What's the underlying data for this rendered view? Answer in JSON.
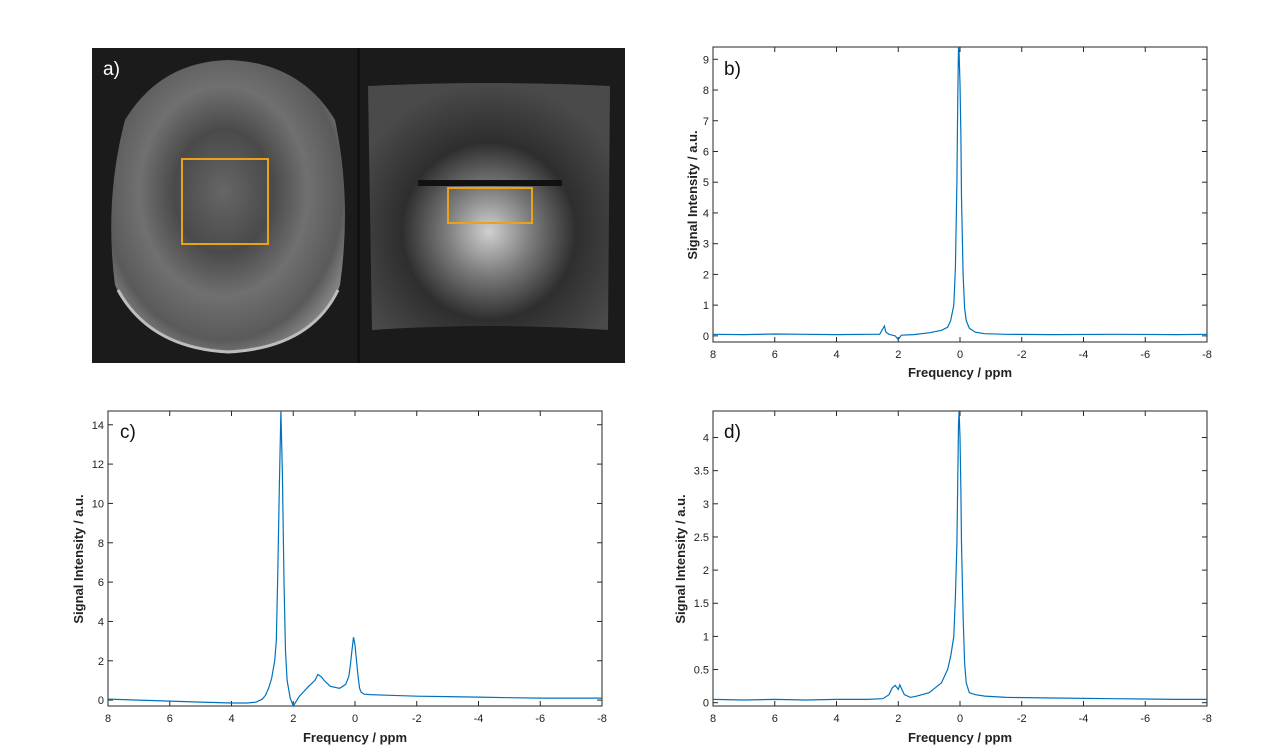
{
  "figure": {
    "panel_a_label": "a)"
  },
  "chart_data": [
    {
      "id": "b",
      "type": "line",
      "panel_label": "b)",
      "xlabel": "Frequency / ppm",
      "ylabel": "Signal Intensity / a.u.",
      "xlim": [
        8,
        -8
      ],
      "ylim": [
        -0.2,
        9.4
      ],
      "xticks": [
        8,
        6,
        4,
        2,
        0,
        -2,
        -4,
        -6,
        -8
      ],
      "xtick_labels": [
        "8",
        "6",
        "4",
        "2",
        "0",
        "-2",
        "-4",
        "-6",
        "-8"
      ],
      "yticks": [
        0,
        1,
        2,
        3,
        4,
        5,
        6,
        7,
        8,
        9
      ],
      "ytick_labels": [
        "0",
        "1",
        "2",
        "3",
        "4",
        "5",
        "6",
        "7",
        "8",
        "9"
      ],
      "line_color": "#0072BD",
      "x": [
        8,
        7,
        6,
        5,
        4,
        3,
        2.6,
        2.45,
        2.4,
        2.3,
        2.1,
        2.0,
        1.9,
        1.5,
        1.0,
        0.6,
        0.4,
        0.3,
        0.2,
        0.15,
        0.1,
        0.07,
        0.05,
        0.03,
        0.0,
        -0.03,
        -0.05,
        -0.1,
        -0.15,
        -0.2,
        -0.3,
        -0.5,
        -0.8,
        -1.5,
        -3,
        -5,
        -7,
        -8
      ],
      "y": [
        0.05,
        0.04,
        0.06,
        0.05,
        0.04,
        0.05,
        0.05,
        0.32,
        0.12,
        0.05,
        0.0,
        -0.12,
        0.02,
        0.04,
        0.1,
        0.18,
        0.28,
        0.5,
        1.0,
        2.2,
        5.0,
        7.8,
        9.4,
        9.2,
        8.2,
        6.5,
        4.5,
        2.0,
        0.9,
        0.5,
        0.25,
        0.12,
        0.07,
        0.05,
        0.04,
        0.05,
        0.04,
        0.05
      ]
    },
    {
      "id": "c",
      "type": "line",
      "panel_label": "c)",
      "xlabel": "Frequency / ppm",
      "ylabel": "Signal Intensity / a.u.",
      "xlim": [
        8,
        -8
      ],
      "ylim": [
        -0.3,
        14.7
      ],
      "xticks": [
        8,
        6,
        4,
        2,
        0,
        -2,
        -4,
        -6,
        -8
      ],
      "xtick_labels": [
        "8",
        "6",
        "4",
        "2",
        "0",
        "-2",
        "-4",
        "-6",
        "-8"
      ],
      "yticks": [
        0,
        2,
        4,
        6,
        8,
        10,
        12,
        14
      ],
      "ytick_labels": [
        "0",
        "2",
        "4",
        "6",
        "8",
        "10",
        "12",
        "14"
      ],
      "line_color": "#0072BD",
      "x": [
        8,
        7,
        6,
        5,
        4,
        3.5,
        3.2,
        3.0,
        2.9,
        2.8,
        2.7,
        2.6,
        2.55,
        2.5,
        2.45,
        2.4,
        2.35,
        2.3,
        2.25,
        2.2,
        2.1,
        2.0,
        1.8,
        1.5,
        1.3,
        1.2,
        1.1,
        1.0,
        0.8,
        0.5,
        0.3,
        0.2,
        0.15,
        0.1,
        0.05,
        0.0,
        -0.05,
        -0.1,
        -0.15,
        -0.2,
        -0.3,
        -0.5,
        -1,
        -2,
        -3,
        -4,
        -5,
        -6,
        -7,
        -8
      ],
      "y": [
        0.05,
        0.0,
        -0.05,
        -0.1,
        -0.15,
        -0.15,
        -0.1,
        0.05,
        0.25,
        0.6,
        1.1,
        2.0,
        3.0,
        6.5,
        11.0,
        14.7,
        11.5,
        6.0,
        2.5,
        1.0,
        0.1,
        -0.3,
        0.2,
        0.7,
        1.0,
        1.3,
        1.2,
        1.0,
        0.7,
        0.6,
        0.8,
        1.2,
        1.8,
        2.5,
        3.2,
        2.8,
        2.0,
        1.2,
        0.6,
        0.4,
        0.3,
        0.28,
        0.25,
        0.2,
        0.18,
        0.15,
        0.12,
        0.1,
        0.1,
        0.1
      ]
    },
    {
      "id": "d",
      "type": "line",
      "panel_label": "d)",
      "xlabel": "Frequency / ppm",
      "ylabel": "Signal Intensity / a.u.",
      "xlim": [
        8,
        -8
      ],
      "ylim": [
        -0.05,
        4.4
      ],
      "xticks": [
        8,
        6,
        4,
        2,
        0,
        -2,
        -4,
        -6,
        -8
      ],
      "xtick_labels": [
        "8",
        "6",
        "4",
        "2",
        "0",
        "-2",
        "-4",
        "-6",
        "-8"
      ],
      "yticks": [
        0,
        0.5,
        1,
        1.5,
        2,
        2.5,
        3,
        3.5,
        4
      ],
      "ytick_labels": [
        "0",
        "0.5",
        "1",
        "1.5",
        "2",
        "2.5",
        "3",
        "3.5",
        "4"
      ],
      "line_color": "#0072BD",
      "x": [
        8,
        7,
        6,
        5,
        4,
        3,
        2.5,
        2.3,
        2.2,
        2.1,
        2.0,
        1.95,
        1.9,
        1.8,
        1.6,
        1.4,
        1.0,
        0.6,
        0.4,
        0.3,
        0.2,
        0.15,
        0.1,
        0.07,
        0.05,
        0.03,
        0.0,
        -0.03,
        -0.05,
        -0.1,
        -0.15,
        -0.2,
        -0.3,
        -0.5,
        -0.8,
        -1.5,
        -3,
        -5,
        -7,
        -8
      ],
      "y": [
        0.05,
        0.04,
        0.05,
        0.04,
        0.05,
        0.05,
        0.06,
        0.12,
        0.22,
        0.26,
        0.2,
        0.27,
        0.22,
        0.12,
        0.08,
        0.1,
        0.15,
        0.3,
        0.5,
        0.7,
        1.0,
        1.6,
        2.4,
        3.4,
        4.2,
        4.4,
        4.0,
        3.2,
        2.4,
        1.3,
        0.6,
        0.3,
        0.15,
        0.12,
        0.1,
        0.08,
        0.07,
        0.06,
        0.05,
        0.05
      ]
    }
  ]
}
